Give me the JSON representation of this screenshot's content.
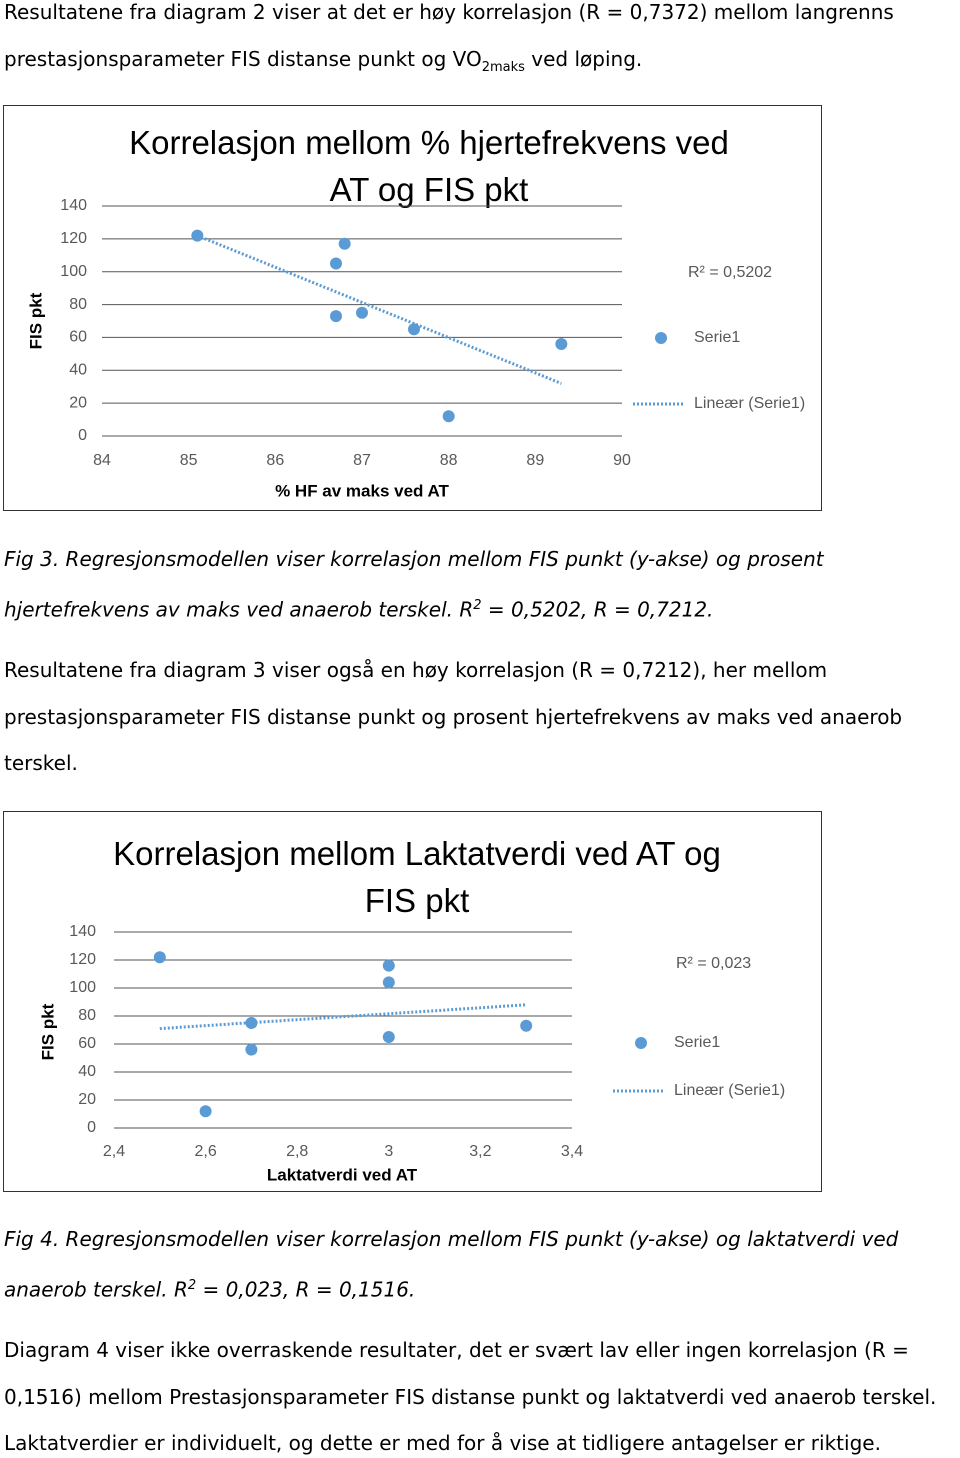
{
  "intro": {
    "text": "Resultatene fra diagram 2 viser at det er høy korrelasjon (R = 0,7372) mellom langrenns prestasjonsparameter FIS distanse punkt og VO",
    "sub": "2maks",
    "tail": " ved løping."
  },
  "fig3_caption": {
    "text": "Fig 3. Regresjonsmodellen viser korrelasjon mellom FIS punkt (y-akse) og prosent hjertefrekvens av maks ved anaerob terskel. R",
    "sup": "2",
    "tail": " = 0,5202, R = 0,7212."
  },
  "paragraph2": "Resultatene fra diagram 3 viser også en høy korrelasjon (R = 0,7212), her mellom prestasjonsparameter FIS distanse punkt og prosent hjertefrekvens av maks ved anaerob terskel.",
  "fig4_caption": {
    "text": "Fig 4. Regresjonsmodellen viser korrelasjon mellom FIS punkt (y-akse) og laktatverdi ved anaerob terskel. R",
    "sup": "2",
    "tail": " = 0,023, R = 0,1516."
  },
  "paragraph3": "Diagram 4 viser ikke overraskende resultater, det er svært lav eller ingen korrelasjon (R = 0,1516) mellom Prestasjonsparameter FIS distanse punkt og laktatverdi ved anaerob terskel. Laktatverdier er individuelt, og dette er med for å vise at tidligere antagelser er riktige.",
  "chart_data": [
    {
      "type": "scatter",
      "title": "Korrelasjon mellom % hjertefrekvens ved AT og FIS pkt",
      "x_label": "% HF av maks ved AT",
      "y_label": "FIS pkt",
      "annotation": "R² = 0,5202",
      "legend": "right",
      "grid": true,
      "xlim": [
        84,
        90
      ],
      "xticks": [
        84,
        85,
        86,
        87,
        88,
        89,
        90
      ],
      "ylim": [
        0,
        140
      ],
      "yticks": [
        0,
        20,
        40,
        60,
        80,
        100,
        120,
        140
      ],
      "series": [
        {
          "name": "Serie1",
          "color": "#5b9bd5",
          "x": [
            85.1,
            86.8,
            86.7,
            86.7,
            87.0,
            87.6,
            88.0,
            89.3
          ],
          "values": [
            122,
            117,
            105,
            73,
            75,
            65,
            12,
            56
          ]
        },
        {
          "name": "Lineær (Serie1)",
          "color": "#5b9bd5",
          "line_style": "dotted",
          "x": [
            85.1,
            89.3
          ],
          "values": [
            122,
            32
          ]
        }
      ]
    },
    {
      "type": "scatter",
      "title": "Korrelasjon mellom Laktatverdi ved AT og FIS pkt",
      "x_label": "Laktatverdi ved AT",
      "y_label": "FIS pkt",
      "annotation": "R² = 0,023",
      "legend": "right",
      "grid": true,
      "xlim": [
        2.4,
        3.4
      ],
      "xticks": [
        {
          "value": 2.4,
          "label": "2,4"
        },
        {
          "value": 2.6,
          "label": "2,6"
        },
        {
          "value": 2.8,
          "label": "2,8"
        },
        3,
        {
          "value": 3.2,
          "label": "3,2"
        },
        {
          "value": 3.4,
          "label": "3,4"
        }
      ],
      "ylim": [
        0,
        140
      ],
      "yticks": [
        0,
        20,
        40,
        60,
        80,
        100,
        120,
        140
      ],
      "series": [
        {
          "name": "Serie1",
          "color": "#5b9bd5",
          "x": [
            2.5,
            2.6,
            2.7,
            2.7,
            3.0,
            3.0,
            3.0,
            3.3
          ],
          "values": [
            122,
            12,
            75,
            56,
            116,
            104,
            65,
            73
          ]
        },
        {
          "name": "Lineær (Serie1)",
          "color": "#5b9bd5",
          "line_style": "dotted",
          "x": [
            2.5,
            3.3
          ],
          "values": [
            71,
            88
          ]
        }
      ]
    }
  ]
}
